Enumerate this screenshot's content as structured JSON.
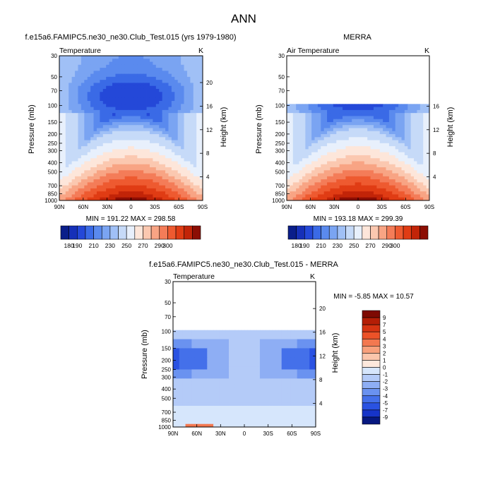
{
  "figure_title": "ANN",
  "colors": {
    "abs_levels": [
      "#0a1e8a",
      "#1630b8",
      "#2448d8",
      "#3a6ae6",
      "#5a8aee",
      "#7aa4f2",
      "#a0c0f6",
      "#c6daf8",
      "#e8f0fc",
      "#fde6da",
      "#fbc8b0",
      "#f8a484",
      "#f47c58",
      "#ee5a30",
      "#e03c14",
      "#c22408",
      "#8c0e04"
    ],
    "diff_levels": [
      "#061880",
      "#1634c8",
      "#2a52e2",
      "#4470ea",
      "#6a92f0",
      "#8eaef4",
      "#b4cbf8",
      "#d6e6fc",
      "#fde8dc",
      "#fbc6ac",
      "#f8a07c",
      "#f37850",
      "#ec5228",
      "#d63412",
      "#b41e06",
      "#7e0a02"
    ]
  },
  "chart_data": [
    {
      "type": "heatmap",
      "name": "model",
      "title": "f.e15a6.FAMIPC5.ne30_ne30.Club_Test.015 (yrs 1979-1980)",
      "left_label": "Temperature",
      "right_label": "K",
      "ylabel": "Pressure (mb)",
      "ylabel_right": "Height (km)",
      "x_ticks": [
        "90N",
        "60N",
        "30N",
        "0",
        "30S",
        "60S",
        "90S"
      ],
      "y_ticks": [
        "30",
        "50",
        "70",
        "100",
        "150",
        "200",
        "250",
        "300",
        "400",
        "500",
        "700",
        "850",
        "1000"
      ],
      "height_ticks": [
        "20",
        "16",
        "12",
        "8",
        "4"
      ],
      "stats": "MIN = 191.22   MAX = 298.58",
      "min": 191.22,
      "max": 298.58,
      "data_top_mb": 30
    },
    {
      "type": "heatmap",
      "name": "obs",
      "title": "MERRA",
      "left_label": "Air Temperature",
      "right_label": "K",
      "ylabel": "Pressure (mb)",
      "ylabel_right": "Height (km)",
      "x_ticks": [
        "90N",
        "60N",
        "30N",
        "0",
        "30S",
        "60S",
        "90S"
      ],
      "y_ticks": [
        "30",
        "50",
        "70",
        "100",
        "150",
        "200",
        "250",
        "300",
        "400",
        "500",
        "700",
        "850",
        "1000"
      ],
      "height_ticks": [
        "16",
        "12",
        "8",
        "4"
      ],
      "stats": "MIN = 193.18   MAX = 299.39",
      "min": 193.18,
      "max": 299.39,
      "data_top_mb": 100
    },
    {
      "type": "heatmap",
      "name": "difference",
      "title": "f.e15a6.FAMIPC5.ne30_ne30.Club_Test.015 - MERRA",
      "left_label": "Temperature",
      "right_label": "K",
      "ylabel": "Pressure (mb)",
      "ylabel_right": "Height (km)",
      "x_ticks": [
        "90N",
        "60N",
        "30N",
        "0",
        "30S",
        "60S",
        "90S"
      ],
      "y_ticks": [
        "30",
        "50",
        "70",
        "100",
        "150",
        "200",
        "250",
        "300",
        "400",
        "500",
        "700",
        "850",
        "1000"
      ],
      "height_ticks": [
        "20",
        "16",
        "12",
        "8",
        "4"
      ],
      "stats": "MIN =  -5.85   MAX =  10.57",
      "min": -5.85,
      "max": 10.57,
      "data_top_mb": 100
    }
  ],
  "colorbar_abs": {
    "labels": [
      "180",
      "190",
      "210",
      "230",
      "250",
      "270",
      "290",
      "300"
    ]
  },
  "colorbar_diff": {
    "labels": [
      "9",
      "7",
      "5",
      "4",
      "3",
      "2",
      "1",
      "0",
      "-1",
      "-2",
      "-3",
      "-4",
      "-5",
      "-7",
      "-9"
    ]
  }
}
